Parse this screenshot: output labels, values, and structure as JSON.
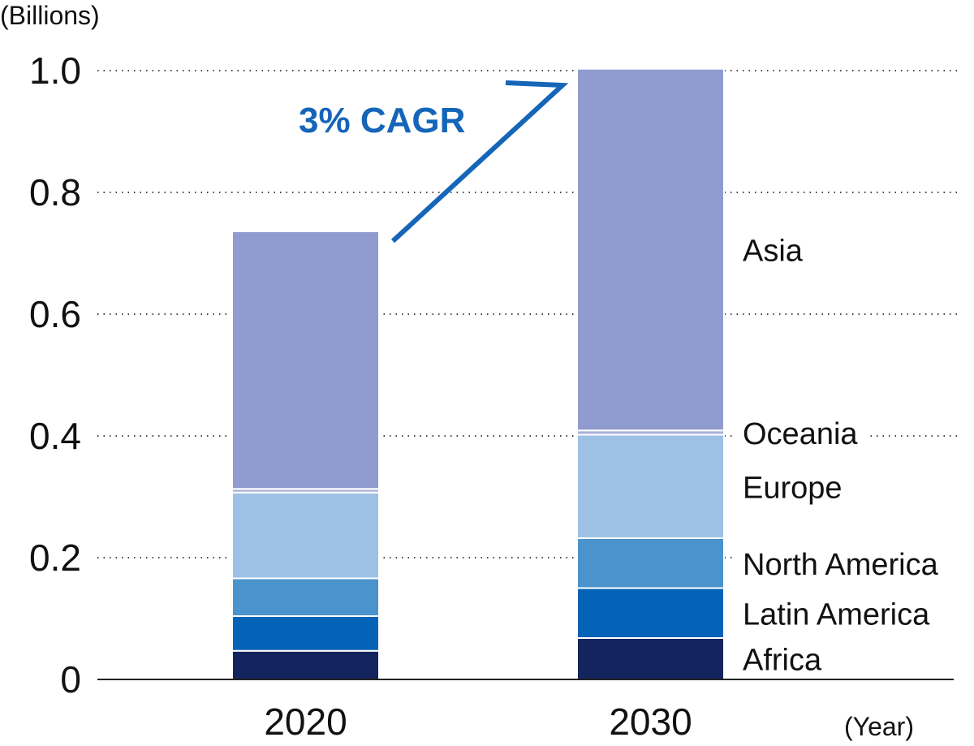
{
  "chart_data": {
    "type": "bar",
    "stacked": true,
    "unit_label": "(Billions)",
    "x_unit_label": "(Year)",
    "categories": [
      "2020",
      "2030"
    ],
    "yticks": [
      "0",
      "0.2",
      "0.4",
      "0.6",
      "0.8",
      "1.0"
    ],
    "ylim": [
      0,
      1.0
    ],
    "grid": "dotted horizontal",
    "series": [
      {
        "name": "Africa",
        "color": "#14245e",
        "values": [
          0.047,
          0.068
        ]
      },
      {
        "name": "Latin America",
        "color": "#0563b7",
        "values": [
          0.057,
          0.082
        ]
      },
      {
        "name": "North America",
        "color": "#4b93cd",
        "values": [
          0.062,
          0.082
        ]
      },
      {
        "name": "Europe",
        "color": "#9cc1e4",
        "values": [
          0.141,
          0.17
        ]
      },
      {
        "name": "Oceania",
        "color": "#aab2dd",
        "values": [
          0.006,
          0.007
        ]
      },
      {
        "name": "Asia",
        "color": "#909bd0",
        "values": [
          0.423,
          0.594
        ]
      }
    ],
    "annotation": {
      "text": "3% CAGR",
      "color": "#1565b8"
    }
  }
}
